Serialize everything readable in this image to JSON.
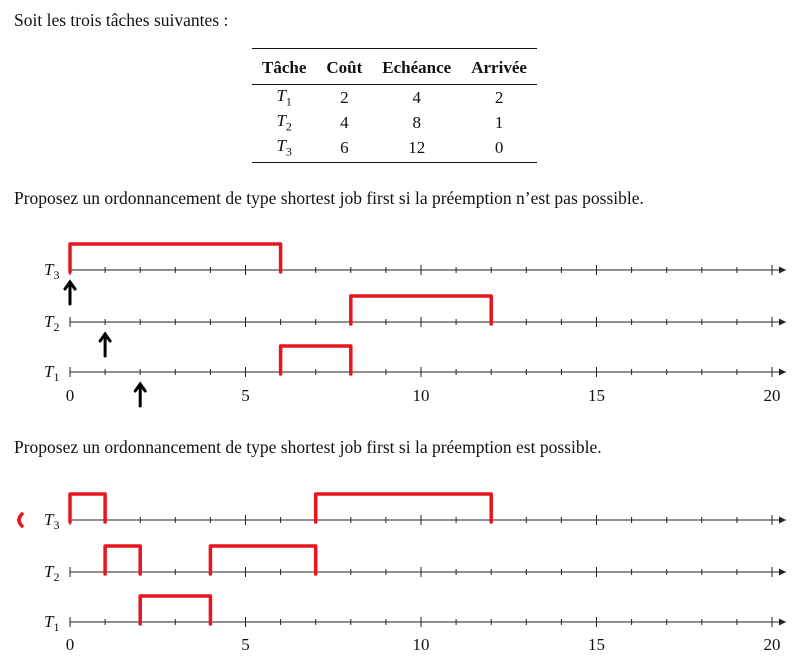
{
  "intro": "Soit les trois tâches suivantes :",
  "table": {
    "headers": [
      "Tâche",
      "Coût",
      "Echéance",
      "Arrivée"
    ],
    "rows": [
      {
        "task": "T",
        "sub": "1",
        "cost": "2",
        "deadline": "4",
        "arrival": "2"
      },
      {
        "task": "T",
        "sub": "2",
        "cost": "4",
        "deadline": "8",
        "arrival": "1"
      },
      {
        "task": "T",
        "sub": "3",
        "cost": "6",
        "deadline": "12",
        "arrival": "0"
      }
    ]
  },
  "question1": "Proposez un ordonnancement de type shortest job first si la préemption n’est pas possible.",
  "question2": "Proposez un ordonnancement de type shortest job first si la préemption est possible.",
  "axis": {
    "row_labels": [
      {
        "name": "T",
        "sub": "3"
      },
      {
        "name": "T",
        "sub": "2"
      },
      {
        "name": "T",
        "sub": "1"
      }
    ],
    "tick_labels": [
      "0",
      "5",
      "10",
      "15",
      "20"
    ],
    "range": [
      0,
      20
    ]
  },
  "annotation_colors": {
    "red": "#e8141e",
    "black": "#000000"
  },
  "timeline1_blocks": [
    {
      "row": "T3",
      "start": 0,
      "end": 6
    },
    {
      "row": "T2",
      "start": 8,
      "end": 12
    },
    {
      "row": "T1",
      "start": 6,
      "end": 8
    }
  ],
  "timeline1_arrival_marks": [
    {
      "row": "T3",
      "time": 0
    },
    {
      "row": "T2",
      "time": 1
    },
    {
      "row": "T1",
      "time": 2
    }
  ],
  "timeline2_blocks": [
    {
      "row": "T3",
      "start": 0,
      "end": 1
    },
    {
      "row": "T3",
      "start": 7,
      "end": 12
    },
    {
      "row": "T2",
      "start": 1,
      "end": 2
    },
    {
      "row": "T2",
      "start": 4,
      "end": 7
    },
    {
      "row": "T1",
      "start": 2,
      "end": 4
    }
  ]
}
